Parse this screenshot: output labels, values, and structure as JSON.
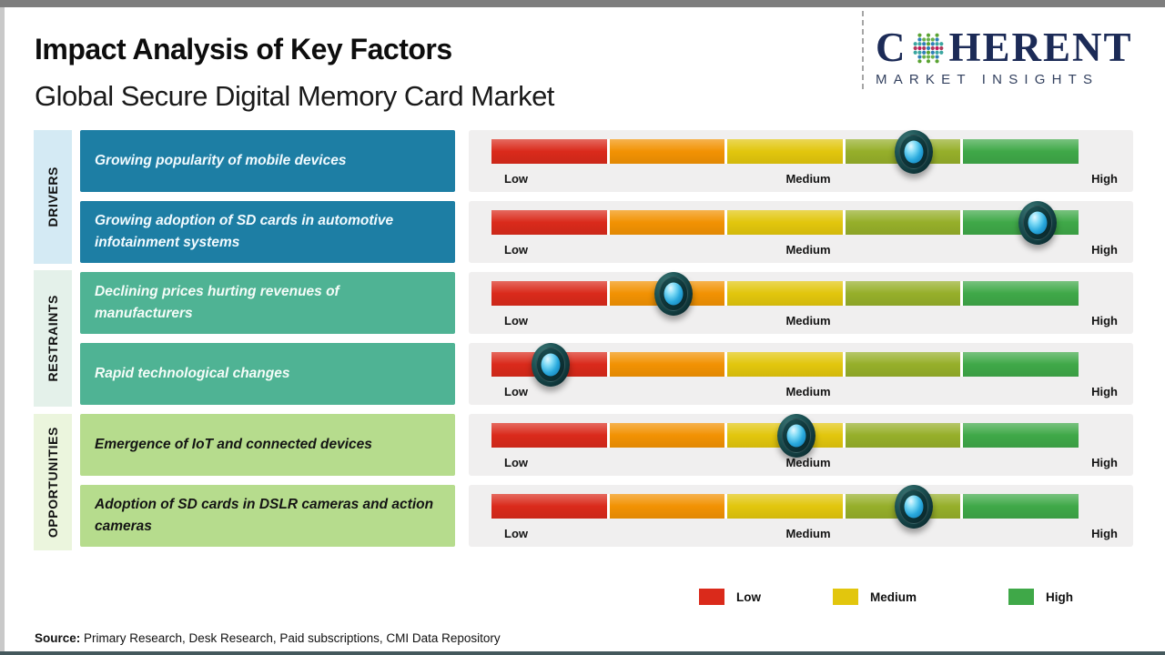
{
  "header": {
    "title": "Impact Analysis of Key Factors",
    "subtitle": "Global Secure Digital Memory Card Market"
  },
  "logo": {
    "brand_c": "C",
    "brand_rest": "HERENT",
    "tagline": "MARKET INSIGHTS"
  },
  "scale": {
    "low": "Low",
    "medium": "Medium",
    "high": "High"
  },
  "groups": [
    {
      "name": "DRIVERS",
      "factors": [
        {
          "text": "Growing popularity of mobile devices",
          "impact_percent": 72
        },
        {
          "text": "Growing adoption of SD cards in automotive infotainment systems",
          "impact_percent": 93
        }
      ]
    },
    {
      "name": "RESTRAINTS",
      "factors": [
        {
          "text": "Declining prices hurting revenues of manufacturers",
          "impact_percent": 31
        },
        {
          "text": "Rapid technological changes",
          "impact_percent": 10
        }
      ]
    },
    {
      "name": "OPPORTUNITIES",
      "factors": [
        {
          "text": "Emergence of IoT and connected devices",
          "impact_percent": 52
        },
        {
          "text": "Adoption of SD cards in DSLR cameras and action cameras",
          "impact_percent": 72
        }
      ]
    }
  ],
  "legend": [
    {
      "label": "Low",
      "color": "#da2a1b"
    },
    {
      "label": "Medium",
      "color": "#e2c60d"
    },
    {
      "label": "High",
      "color": "#3fa848"
    }
  ],
  "footer": {
    "source_label": "Source:",
    "source_text": " Primary Research, Desk Research, Paid subscriptions, CMI Data Repository"
  },
  "colors": {
    "drivers_box": "#1d7ea4",
    "restraints_box": "#4fb394",
    "opportunities_box": "#b6dc8d",
    "drivers_label_bg": "#d4eaf4",
    "restraints_label_bg": "#e4f1ea",
    "opportunities_label_bg": "#ebf5dd",
    "panel_bg": "#f0efef",
    "bar_segments": [
      "#da2a1b",
      "#f29203",
      "#e2c60d",
      "#96af2a",
      "#3fa848"
    ],
    "logo_navy": "#1c2b57"
  },
  "chart_data": {
    "type": "table",
    "title": "Impact Analysis of Key Factors",
    "subtitle": "Global Secure Digital Memory Card Market",
    "scale_ticks": [
      "Low",
      "Medium",
      "High"
    ],
    "scale_range_percent": [
      0,
      100
    ],
    "segments": [
      "red",
      "orange",
      "yellow",
      "olive",
      "green"
    ],
    "legend_entries": [
      "Low",
      "Medium",
      "High"
    ],
    "legend_position": "bottom-right",
    "rows": [
      {
        "group": "DRIVERS",
        "factor": "Growing popularity of mobile devices",
        "impact_percent": 72,
        "impact_level": "Medium-High"
      },
      {
        "group": "DRIVERS",
        "factor": "Growing adoption of SD cards in automotive infotainment systems",
        "impact_percent": 93,
        "impact_level": "High"
      },
      {
        "group": "RESTRAINTS",
        "factor": "Declining prices hurting revenues of manufacturers",
        "impact_percent": 31,
        "impact_level": "Low-Medium"
      },
      {
        "group": "RESTRAINTS",
        "factor": "Rapid technological changes",
        "impact_percent": 10,
        "impact_level": "Low"
      },
      {
        "group": "OPPORTUNITIES",
        "factor": "Emergence of IoT and connected devices",
        "impact_percent": 52,
        "impact_level": "Medium"
      },
      {
        "group": "OPPORTUNITIES",
        "factor": "Adoption of SD cards in DSLR cameras and action cameras",
        "impact_percent": 72,
        "impact_level": "Medium-High"
      }
    ],
    "source": "Primary Research, Desk Research, Paid subscriptions, CMI Data Repository"
  }
}
